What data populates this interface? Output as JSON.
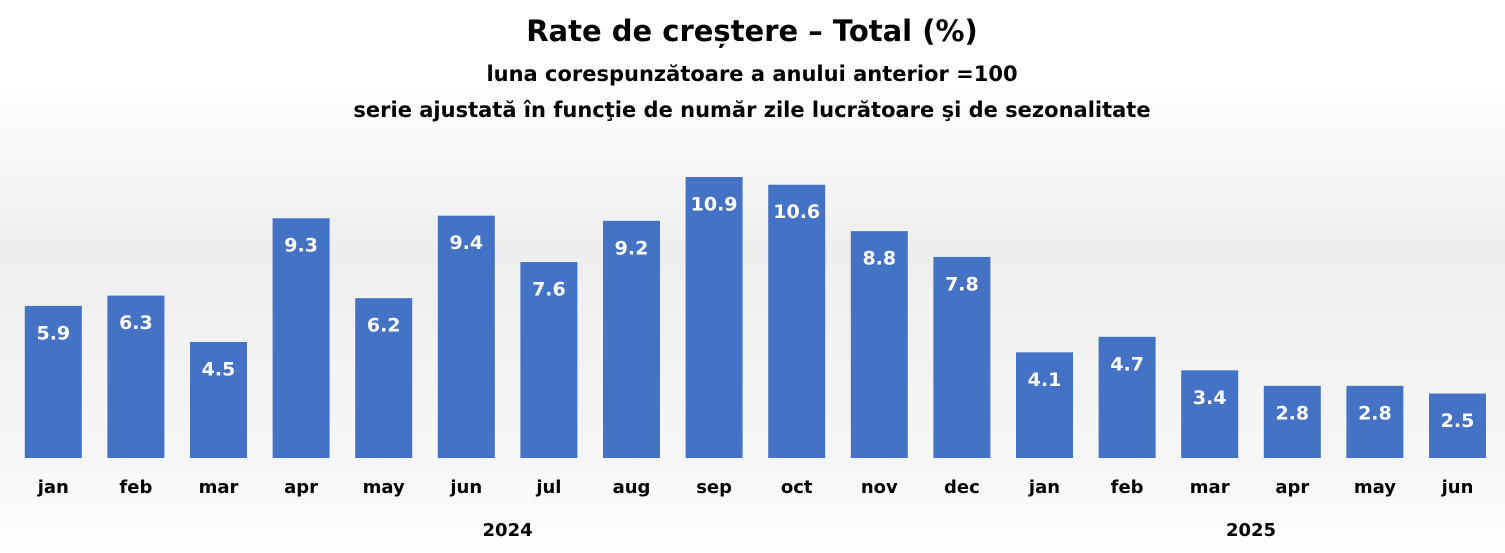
{
  "chart_data": {
    "type": "bar",
    "title": "Rate de creștere – Total (%)",
    "subtitle": "luna corespunzătoare a anului anterior =100",
    "subtitle2": "serie ajustată în funcţie de număr zile lucrătoare şi de sezonalitate",
    "color": "#4472c4",
    "groups": [
      {
        "label": "2024",
        "categories": [
          "jan",
          "feb",
          "mar",
          "apr",
          "may",
          "jun",
          "jul",
          "aug",
          "sep",
          "oct",
          "nov",
          "dec"
        ],
        "values": [
          5.9,
          6.3,
          4.5,
          9.3,
          6.2,
          9.4,
          7.6,
          9.2,
          10.9,
          10.6,
          8.8,
          7.8
        ]
      },
      {
        "label": "2025",
        "categories": [
          "jan",
          "feb",
          "mar",
          "apr",
          "may",
          "jun"
        ],
        "values": [
          4.1,
          4.7,
          3.4,
          2.8,
          2.8,
          2.5
        ]
      }
    ]
  }
}
